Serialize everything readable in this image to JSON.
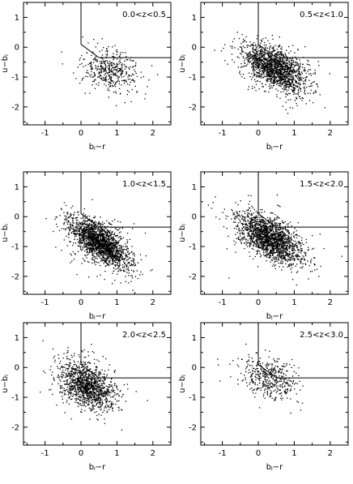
{
  "figure": {
    "xlabel": "bⱼ−r",
    "ylabel": "u−bⱼ"
  },
  "chart_data": [
    {
      "type": "scatter",
      "panel_label": "0.0<z<0.5",
      "xlim": [
        -1.6,
        2.5
      ],
      "ylim": [
        -2.6,
        1.5
      ],
      "xticks": [
        -1,
        0,
        1,
        2
      ],
      "yticks": [
        -2,
        -1,
        0,
        1
      ],
      "xlabel": "bⱼ−r",
      "ylabel": "u−bⱼ",
      "cut_lines": [
        [
          [
            0,
            1.5
          ],
          [
            0,
            0.1
          ]
        ],
        [
          [
            0,
            0.1
          ],
          [
            0.5,
            -0.35
          ]
        ],
        [
          [
            0.5,
            -0.35
          ],
          [
            2.5,
            -0.35
          ]
        ]
      ],
      "points": {
        "count": 450,
        "center": [
          0.8,
          -0.75
        ],
        "spread": [
          0.4,
          0.35
        ],
        "corr": -0.3
      }
    },
    {
      "type": "scatter",
      "panel_label": "0.5<z<1.0",
      "xlim": [
        -1.6,
        2.5
      ],
      "ylim": [
        -2.6,
        1.5
      ],
      "xticks": [
        -1,
        0,
        1,
        2
      ],
      "yticks": [
        -2,
        -1,
        0,
        1
      ],
      "xlabel": "bⱼ−r",
      "ylabel": "u−bⱼ",
      "cut_lines": [
        [
          [
            0,
            1.5
          ],
          [
            0,
            0.1
          ]
        ],
        [
          [
            0,
            0.1
          ],
          [
            0.5,
            -0.35
          ]
        ],
        [
          [
            0.5,
            -0.35
          ],
          [
            2.5,
            -0.35
          ]
        ]
      ],
      "points": {
        "count": 1700,
        "center": [
          0.45,
          -0.7
        ],
        "spread": [
          0.45,
          0.4
        ],
        "corr": -0.55
      }
    },
    {
      "type": "scatter",
      "panel_label": "1.0<z<1.5",
      "xlim": [
        -1.6,
        2.5
      ],
      "ylim": [
        -2.6,
        1.5
      ],
      "xticks": [
        -1,
        0,
        1,
        2
      ],
      "yticks": [
        -2,
        -1,
        0,
        1
      ],
      "xlabel": "bⱼ−r",
      "ylabel": "u−bⱼ",
      "cut_lines": [
        [
          [
            0,
            1.5
          ],
          [
            0,
            0.1
          ]
        ],
        [
          [
            0,
            0.1
          ],
          [
            0.5,
            -0.35
          ]
        ],
        [
          [
            0.5,
            -0.35
          ],
          [
            2.5,
            -0.35
          ]
        ]
      ],
      "points": {
        "count": 2000,
        "center": [
          0.5,
          -0.85
        ],
        "spread": [
          0.42,
          0.42
        ],
        "corr": -0.65
      }
    },
    {
      "type": "scatter",
      "panel_label": "1.5<z<2.0",
      "xlim": [
        -1.6,
        2.5
      ],
      "ylim": [
        -2.6,
        1.5
      ],
      "xticks": [
        -1,
        0,
        1,
        2
      ],
      "yticks": [
        -2,
        -1,
        0,
        1
      ],
      "xlabel": "bⱼ−r",
      "ylabel": "u−bⱼ",
      "cut_lines": [
        [
          [
            0,
            1.5
          ],
          [
            0,
            0.1
          ]
        ],
        [
          [
            0,
            0.1
          ],
          [
            0.5,
            -0.35
          ]
        ],
        [
          [
            0.5,
            -0.35
          ],
          [
            2.5,
            -0.35
          ]
        ]
      ],
      "points": {
        "count": 1900,
        "center": [
          0.3,
          -0.7
        ],
        "spread": [
          0.45,
          0.42
        ],
        "corr": -0.6
      }
    },
    {
      "type": "scatter",
      "panel_label": "2.0<z<2.5",
      "xlim": [
        -1.6,
        2.5
      ],
      "ylim": [
        -2.6,
        1.5
      ],
      "xticks": [
        -1,
        0,
        1,
        2
      ],
      "yticks": [
        -2,
        -1,
        0,
        1
      ],
      "xlabel": "bⱼ−r",
      "ylabel": "u−bⱼ",
      "cut_lines": [
        [
          [
            0,
            1.5
          ],
          [
            0,
            0.1
          ]
        ],
        [
          [
            0,
            0.1
          ],
          [
            0.5,
            -0.35
          ]
        ],
        [
          [
            0.5,
            -0.35
          ],
          [
            2.5,
            -0.35
          ]
        ]
      ],
      "points": {
        "count": 1300,
        "center": [
          0.15,
          -0.6
        ],
        "spread": [
          0.4,
          0.42
        ],
        "corr": -0.45
      }
    },
    {
      "type": "scatter",
      "panel_label": "2.5<z<3.0",
      "xlim": [
        -1.6,
        2.5
      ],
      "ylim": [
        -2.6,
        1.5
      ],
      "xticks": [
        -1,
        0,
        1,
        2
      ],
      "yticks": [
        -2,
        -1,
        0,
        1
      ],
      "xlabel": "bⱼ−r",
      "ylabel": "u−bⱼ",
      "cut_lines": [
        [
          [
            0,
            1.5
          ],
          [
            0,
            0.1
          ]
        ],
        [
          [
            0,
            0.1
          ],
          [
            0.5,
            -0.35
          ]
        ],
        [
          [
            0.5,
            -0.35
          ],
          [
            2.5,
            -0.35
          ]
        ]
      ],
      "points": {
        "count": 450,
        "center": [
          0.3,
          -0.35
        ],
        "spread": [
          0.4,
          0.35
        ],
        "corr": -0.35
      }
    }
  ]
}
